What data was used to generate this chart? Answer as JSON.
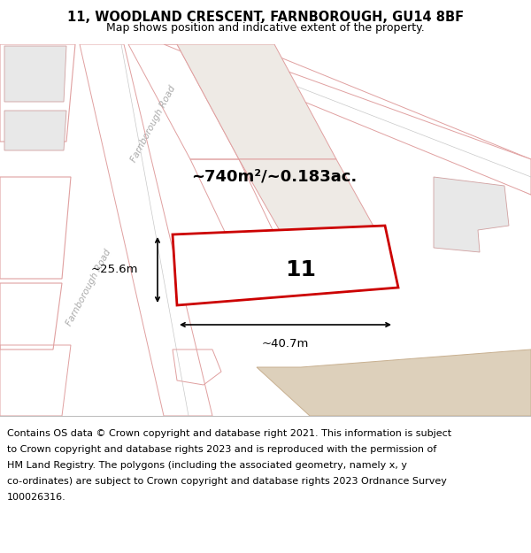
{
  "title_line1": "11, WOODLAND CRESCENT, FARNBOROUGH, GU14 8BF",
  "title_line2": "Map shows position and indicative extent of the property.",
  "footer_lines": [
    "Contains OS data © Crown copyright and database right 2021. This information is subject",
    "to Crown copyright and database rights 2023 and is reproduced with the permission of",
    "HM Land Registry. The polygons (including the associated geometry, namely x, y",
    "co-ordinates) are subject to Crown copyright and database rights 2023 Ordnance Survey",
    "100026316."
  ],
  "map_bg": "#f7f2ed",
  "road_color": "#ffffff",
  "road_edge": "#e0a0a0",
  "plot_edge": "#e0a0a0",
  "bld_fill": "#e8e8e8",
  "bld_edge": "#d0a0a0",
  "prop_fill": "#ffffff",
  "prop_edge": "#cc0000",
  "inner_fill": "#e8e4df",
  "tan_fill": "#ddd0bb",
  "area_text": "~740m²/~0.183ac.",
  "number_text": "11",
  "dim_width": "~40.7m",
  "dim_height": "~25.6m",
  "road_label": "Farnborough Road",
  "title_fontsize": 10.5,
  "subtitle_fontsize": 9,
  "footer_fontsize": 8,
  "road_label_color": "#aaaaaa",
  "road_line_color": "#c8c8c8"
}
